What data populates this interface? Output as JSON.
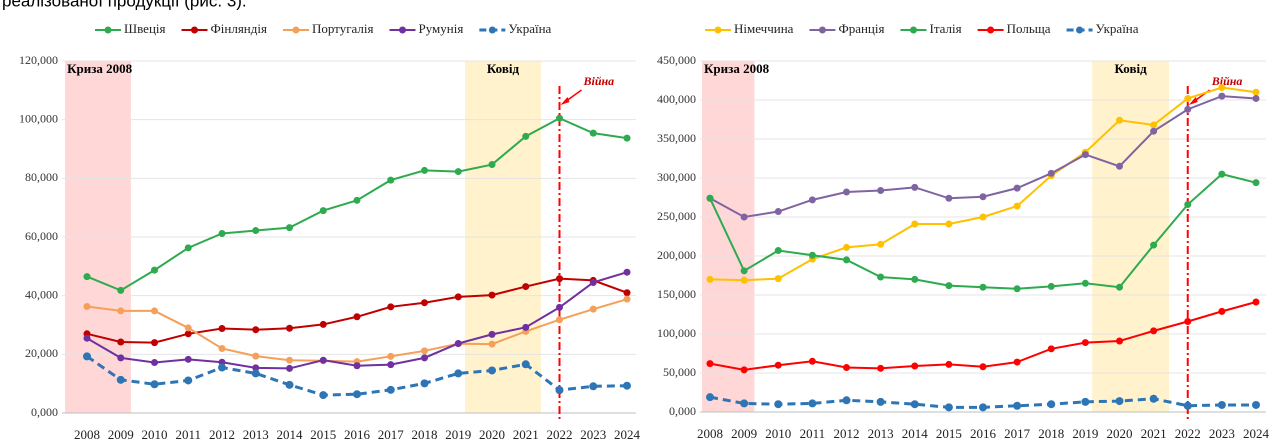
{
  "caption": "реалізованої продукції (рис. 3).",
  "chart_data": [
    {
      "type": "line",
      "categories": [
        "2008",
        "2009",
        "2010",
        "2011",
        "2012",
        "2013",
        "2014",
        "2015",
        "2016",
        "2017",
        "2018",
        "2019",
        "2020",
        "2021",
        "2022",
        "2023",
        "2024"
      ],
      "ylim": [
        0,
        120000
      ],
      "yticks": [
        {
          "value": 0,
          "label": "0,000"
        },
        {
          "value": 20000,
          "label": "20,000"
        },
        {
          "value": 40000,
          "label": "40,000"
        },
        {
          "value": 60000,
          "label": "60,000"
        },
        {
          "value": 80000,
          "label": "80,000"
        },
        {
          "value": 100000,
          "label": "100,000"
        },
        {
          "value": 120000,
          "label": "120,000"
        }
      ],
      "grid": true,
      "series": [
        {
          "name": "Швеція",
          "color": "#2eaa4f",
          "values": [
            46500,
            41800,
            48700,
            56300,
            61200,
            62200,
            63200,
            69000,
            72500,
            79400,
            82700,
            82300,
            84700,
            94300,
            100500,
            95400,
            93700
          ]
        },
        {
          "name": "Фінляндія",
          "color": "#c00000",
          "values": [
            27000,
            24200,
            24000,
            27000,
            28800,
            28400,
            28900,
            30200,
            32800,
            36200,
            37600,
            39600,
            40200,
            43100,
            45800,
            45200,
            41000
          ]
        },
        {
          "name": "Португалія",
          "color": "#f4a05a",
          "values": [
            36300,
            34800,
            34800,
            29000,
            22000,
            19400,
            18000,
            17800,
            17500,
            19300,
            21200,
            23600,
            23500,
            27800,
            31800,
            35400,
            38800
          ]
        },
        {
          "name": "Румунія",
          "color": "#7030a0",
          "values": [
            25500,
            18800,
            17200,
            18300,
            17300,
            15400,
            15200,
            18000,
            16100,
            16500,
            18800,
            23700,
            26800,
            29200,
            36000,
            44500,
            48000
          ]
        },
        {
          "name": "Україна",
          "color": "#2e75b6",
          "dashed": true,
          "values": [
            19300,
            11300,
            9800,
            11100,
            15500,
            13500,
            9600,
            6100,
            6400,
            7900,
            10100,
            13500,
            14500,
            16600,
            7800,
            9100,
            9300
          ]
        }
      ],
      "bands": [
        {
          "label": "Криза 2008",
          "from": "2008",
          "to": "2009",
          "color": "#ffd7d7"
        },
        {
          "label": "Ковід",
          "from": "2019",
          "to": "2021",
          "color": "#fff2cc"
        }
      ],
      "event": {
        "label": "Війна",
        "at": "2022",
        "color": "#ff0000"
      }
    },
    {
      "type": "line",
      "categories": [
        "2008",
        "2009",
        "2010",
        "2011",
        "2012",
        "2013",
        "2014",
        "2015",
        "2016",
        "2017",
        "2018",
        "2019",
        "2020",
        "2021",
        "2022",
        "2023",
        "2024"
      ],
      "ylim": [
        0,
        450000
      ],
      "yticks": [
        {
          "value": 0,
          "label": "0,000"
        },
        {
          "value": 50000,
          "label": "50,000"
        },
        {
          "value": 100000,
          "label": "100,000"
        },
        {
          "value": 150000,
          "label": "150,000"
        },
        {
          "value": 200000,
          "label": "200,000"
        },
        {
          "value": 250000,
          "label": "250,000"
        },
        {
          "value": 300000,
          "label": "300,000"
        },
        {
          "value": 350000,
          "label": "350,000"
        },
        {
          "value": 400000,
          "label": "400,000"
        },
        {
          "value": 450000,
          "label": "450,000"
        }
      ],
      "grid": true,
      "series": [
        {
          "name": "Німеччина",
          "color": "#ffc000",
          "values": [
            170000,
            169000,
            171000,
            196000,
            211000,
            215000,
            241000,
            241000,
            250000,
            264000,
            303000,
            333000,
            374000,
            368000,
            402000,
            416000,
            410000
          ]
        },
        {
          "name": "Франція",
          "color": "#8064a2",
          "values": [
            274000,
            250000,
            257000,
            272000,
            282000,
            284000,
            288000,
            274000,
            276000,
            287000,
            306000,
            330000,
            315000,
            360000,
            388000,
            405000,
            402000
          ]
        },
        {
          "name": "Італія",
          "color": "#2eaa4f",
          "values": [
            274000,
            181000,
            207000,
            201000,
            195000,
            173000,
            170000,
            162000,
            160000,
            158000,
            161000,
            165000,
            160000,
            214000,
            266000,
            305000,
            294000
          ]
        },
        {
          "name": "Польща",
          "color": "#ff0000",
          "values": [
            62000,
            54000,
            60000,
            65000,
            57000,
            56000,
            59000,
            61000,
            58000,
            64000,
            81000,
            89000,
            91000,
            104000,
            116000,
            129000,
            141000
          ]
        },
        {
          "name": "Україна",
          "color": "#2e75b6",
          "dashed": true,
          "values": [
            19000,
            11000,
            10000,
            11000,
            15000,
            13000,
            10000,
            6000,
            6000,
            8000,
            10000,
            13000,
            14000,
            17000,
            8000,
            9000,
            9000
          ]
        }
      ],
      "bands": [
        {
          "label": "Криза 2008",
          "from": "2008",
          "to": "2009",
          "color": "#ffd7d7"
        },
        {
          "label": "Ковід",
          "from": "2019",
          "to": "2021",
          "color": "#fff2cc"
        }
      ],
      "event": {
        "label": "Війна",
        "at": "2022",
        "color": "#ff0000"
      }
    }
  ]
}
